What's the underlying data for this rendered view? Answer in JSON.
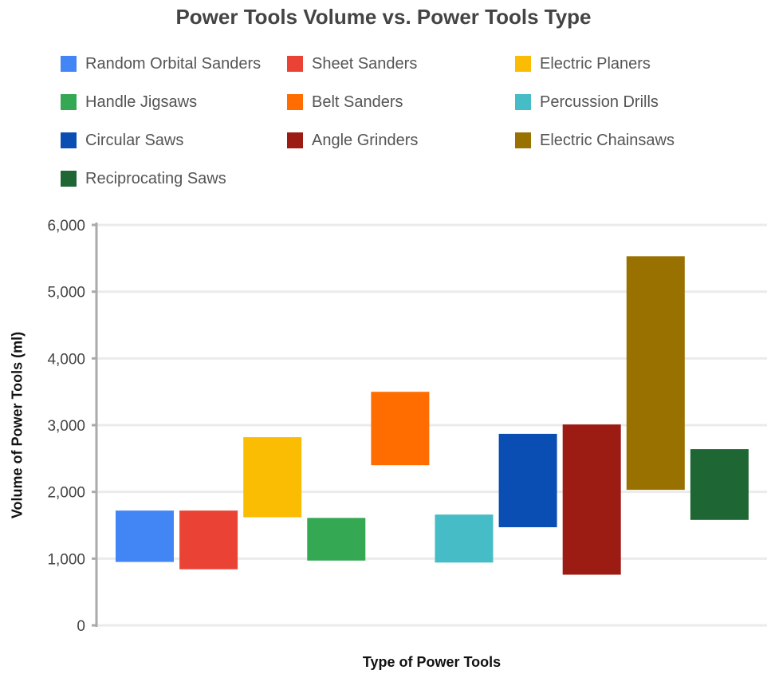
{
  "chart_data": {
    "type": "bar",
    "subtype": "floating-range",
    "title": "Power Tools Volume vs. Power Tools Type",
    "xlabel": "Type of Power Tools",
    "ylabel": "Volume of Power Tools (ml)",
    "ylim": [
      0,
      6000
    ],
    "yticks": [
      {
        "value": 0,
        "label": "0"
      },
      {
        "value": 1000,
        "label": "1,000"
      },
      {
        "value": 2000,
        "label": "2,000"
      },
      {
        "value": 3000,
        "label": "3,000"
      },
      {
        "value": 4000,
        "label": "4,000"
      },
      {
        "value": 5000,
        "label": "5,000"
      },
      {
        "value": 6000,
        "label": "6,000"
      }
    ],
    "grid": true,
    "legend_position": "top",
    "series": [
      {
        "name": "Random Orbital Sanders",
        "color": "#4285F4",
        "low": 950,
        "high": 1720
      },
      {
        "name": "Sheet Sanders",
        "color": "#EA4335",
        "low": 840,
        "high": 1720
      },
      {
        "name": "Electric Planers",
        "color": "#FBBC04",
        "low": 1620,
        "high": 2820
      },
      {
        "name": "Handle Jigsaws",
        "color": "#34A853",
        "low": 970,
        "high": 1610
      },
      {
        "name": "Belt Sanders",
        "color": "#FF6D01",
        "low": 2400,
        "high": 3500
      },
      {
        "name": "Percussion Drills",
        "color": "#46BDC6",
        "low": 940,
        "high": 1660
      },
      {
        "name": "Circular Saws",
        "color": "#0B4EB3",
        "low": 1470,
        "high": 2870
      },
      {
        "name": "Angle Grinders",
        "color": "#9C1B12",
        "low": 760,
        "high": 3010
      },
      {
        "name": "Electric Chainsaws",
        "color": "#997100",
        "low": 2030,
        "high": 5530
      },
      {
        "name": "Reciprocating Saws",
        "color": "#1E6634",
        "low": 1580,
        "high": 2640
      }
    ]
  }
}
